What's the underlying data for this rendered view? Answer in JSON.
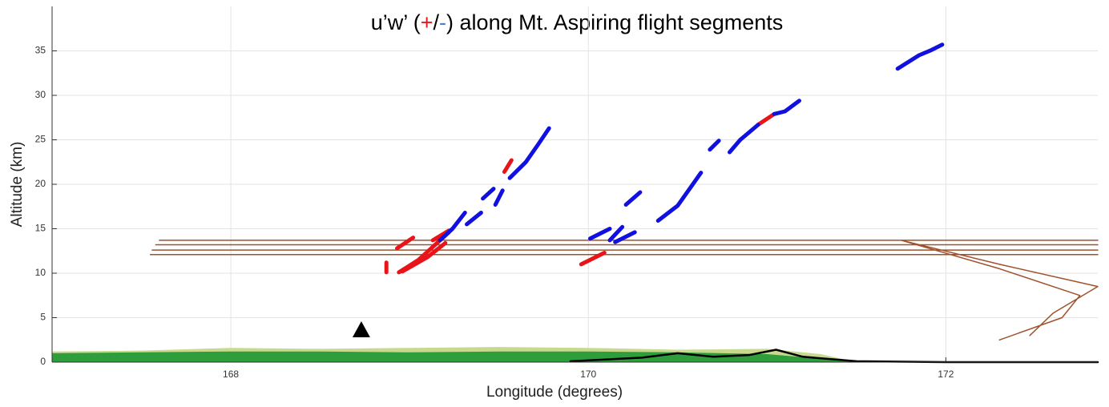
{
  "chart_data": {
    "type": "line",
    "title": [
      {
        "text": "u’w’ (",
        "color": "#000000"
      },
      {
        "text": "+",
        "color": "#e8141a"
      },
      {
        "text": "/",
        "color": "#000000"
      },
      {
        "text": "-",
        "color": "#4a7fd0"
      },
      {
        "text": ") along Mt. Aspiring flight segments",
        "color": "#000000"
      }
    ],
    "xlabel": "Longitude (degrees)",
    "ylabel": "Altitude (km)",
    "xlim": [
      167,
      172.85
    ],
    "ylim": [
      0,
      40
    ],
    "xticks": [
      168,
      170,
      172
    ],
    "yticks": [
      0,
      5,
      10,
      15,
      20,
      25,
      30,
      35
    ],
    "grid": true,
    "series": [
      {
        "kind": "area",
        "color": "#c7d98c",
        "x": [
          167,
          167.5,
          168,
          168.5,
          169,
          169.5,
          170,
          170.5,
          171,
          171.3,
          171.5
        ],
        "values": [
          1.2,
          1.3,
          1.6,
          1.5,
          1.6,
          1.7,
          1.6,
          1.4,
          1.5,
          0.9,
          0
        ]
      },
      {
        "kind": "area",
        "color": "#2e9e3c",
        "x": [
          167,
          167.5,
          168,
          168.5,
          169,
          169.5,
          170,
          170.5,
          171,
          171.3,
          171.5
        ],
        "values": [
          1.0,
          1.1,
          1.2,
          1.2,
          1.1,
          1.2,
          1.2,
          1.1,
          0.9,
          0.4,
          0
        ]
      },
      {
        "kind": "line",
        "color": "#000000",
        "width": 2.5,
        "x": [
          169.9,
          170.3,
          170.5,
          170.7,
          170.9,
          171.05,
          171.2,
          171.5,
          172.0,
          172.85
        ],
        "values": [
          0.1,
          0.5,
          1.0,
          0.6,
          0.8,
          1.4,
          0.6,
          0.1,
          0.0,
          0.0
        ]
      },
      {
        "kind": "line",
        "color": "#a0522d",
        "width": 1.5,
        "x": [
          167.6,
          172.85,
          null,
          167.58,
          172.85,
          null,
          167.56,
          172.85,
          null,
          167.55,
          172.85,
          null,
          171.75,
          172.3,
          172.85,
          172.6,
          172.47,
          null,
          171.75,
          172.3,
          172.75,
          172.65,
          172.3
        ],
        "values": [
          13.7,
          13.7,
          null,
          13.2,
          13.2,
          null,
          12.6,
          12.6,
          null,
          12.1,
          12.1,
          null,
          13.7,
          11.0,
          8.5,
          5.5,
          3.0,
          null,
          13.7,
          10.5,
          7.5,
          5.0,
          2.5
        ]
      },
      {
        "kind": "line",
        "color": "#e8141a",
        "width": 5,
        "x": [
          168.87,
          168.87,
          null,
          168.93,
          169.02,
          null,
          168.94,
          169.05,
          169.22,
          null,
          168.96,
          169.1,
          169.2,
          null,
          169.13,
          169.22,
          null,
          169.53,
          169.57,
          null,
          169.96,
          170.09,
          null,
          170.95,
          171.04
        ],
        "values": [
          10.1,
          11.2,
          null,
          12.8,
          14.0,
          null,
          10.1,
          11.5,
          14.6,
          null,
          10.2,
          11.8,
          13.4,
          null,
          13.7,
          14.8,
          null,
          21.4,
          22.7,
          null,
          11.0,
          12.3,
          null,
          26.7,
          27.9
        ]
      },
      {
        "kind": "line",
        "color": "#1010e0",
        "width": 5,
        "x": [
          169.17,
          169.24,
          169.31,
          null,
          169.32,
          169.4,
          null,
          169.41,
          169.47,
          null,
          169.48,
          169.52,
          null,
          169.56,
          169.65,
          169.72,
          169.78,
          null,
          170.01,
          170.12,
          null,
          170.12,
          170.19,
          null,
          170.15,
          170.26,
          null,
          170.21,
          170.29,
          null,
          170.39,
          170.5,
          170.63,
          null,
          170.68,
          170.73,
          null,
          170.79,
          170.85,
          170.95,
          null,
          171.04,
          171.1,
          171.18,
          null,
          171.73,
          171.85,
          171.92,
          171.98
        ],
        "values": [
          13.7,
          15.0,
          16.8,
          null,
          15.5,
          16.8,
          null,
          18.4,
          19.5,
          null,
          17.7,
          19.3,
          null,
          20.7,
          22.5,
          24.5,
          26.3,
          null,
          13.9,
          15.0,
          null,
          13.7,
          15.2,
          null,
          13.5,
          14.6,
          null,
          17.7,
          19.1,
          null,
          15.9,
          17.6,
          21.3,
          null,
          23.9,
          24.9,
          null,
          23.6,
          25.0,
          26.7,
          null,
          27.9,
          28.2,
          29.4,
          null,
          33.0,
          34.5,
          35.1,
          35.7
        ]
      },
      {
        "kind": "marker",
        "color": "#000000",
        "x": [
          168.73
        ],
        "values": [
          3.6
        ]
      }
    ]
  }
}
